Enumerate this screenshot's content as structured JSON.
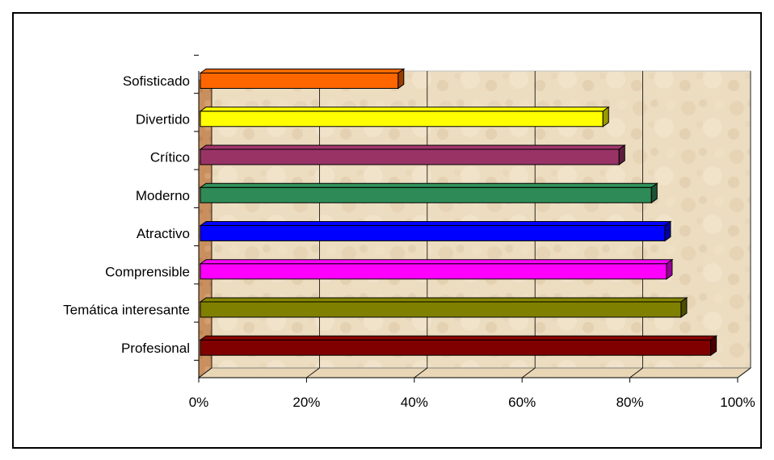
{
  "chart_data": {
    "type": "bar",
    "orientation": "horizontal",
    "categories": [
      "Sofisticado",
      "Divertido",
      "Crítico",
      "Moderno",
      "Atractivo",
      "Comprensible",
      "Temática interesante",
      "Profesional"
    ],
    "values": [
      37,
      75,
      78,
      84,
      86.5,
      86.8,
      89.5,
      95
    ],
    "colors": [
      "#ff6600",
      "#ffff00",
      "#993366",
      "#2e8b57",
      "#0000ff",
      "#ff00ff",
      "#808000",
      "#800000"
    ],
    "xlim": [
      0,
      100
    ],
    "xticks": [
      "0%",
      "20%",
      "40%",
      "60%",
      "80%",
      "100%"
    ],
    "grid": true,
    "style": "3d"
  }
}
